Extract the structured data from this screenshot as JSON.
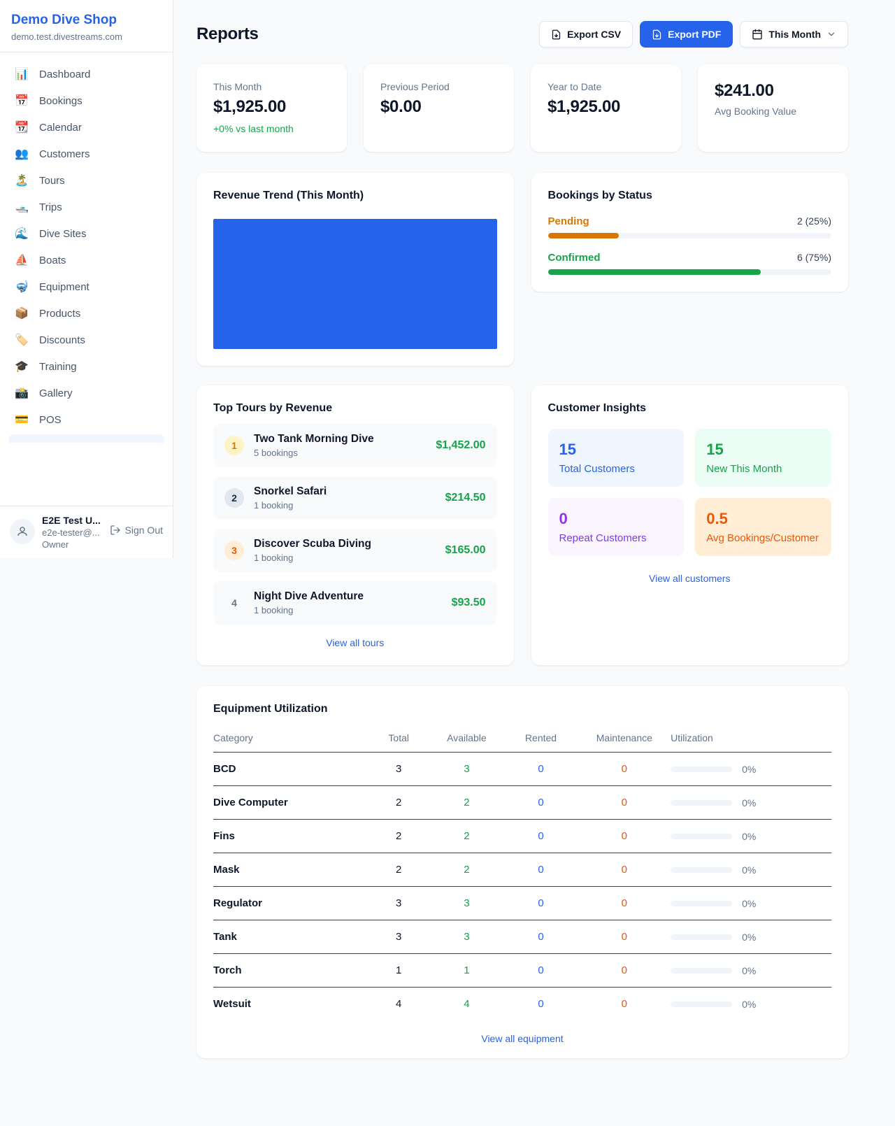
{
  "sidebar": {
    "title": "Demo Dive Shop",
    "subdomain": "demo.test.divestreams.com",
    "items": [
      {
        "icon": "📊",
        "label": "Dashboard"
      },
      {
        "icon": "📅",
        "label": "Bookings"
      },
      {
        "icon": "📆",
        "label": "Calendar"
      },
      {
        "icon": "👥",
        "label": "Customers"
      },
      {
        "icon": "🏝️",
        "label": "Tours"
      },
      {
        "icon": "🛥️",
        "label": "Trips"
      },
      {
        "icon": "🌊",
        "label": "Dive Sites"
      },
      {
        "icon": "⛵",
        "label": "Boats"
      },
      {
        "icon": "🤿",
        "label": "Equipment"
      },
      {
        "icon": "📦",
        "label": "Products"
      },
      {
        "icon": "🏷️",
        "label": "Discounts"
      },
      {
        "icon": "🎓",
        "label": "Training"
      },
      {
        "icon": "📸",
        "label": "Gallery"
      },
      {
        "icon": "💳",
        "label": "POS"
      }
    ],
    "user": {
      "name": "E2E Test U...",
      "email": "e2e-tester@...",
      "role": "Owner",
      "sign_out_label": "Sign Out"
    }
  },
  "header": {
    "title": "Reports",
    "export_csv_label": "Export CSV",
    "export_pdf_label": "Export PDF",
    "period_label": "This Month"
  },
  "stats": [
    {
      "label": "This Month",
      "value": "$1,925.00",
      "delta": "+0% vs last month"
    },
    {
      "label": "Previous Period",
      "value": "$0.00"
    },
    {
      "label": "Year to Date",
      "value": "$1,925.00"
    },
    {
      "label": "Avg Booking Value",
      "value": "$241.00"
    }
  ],
  "revenue_trend": {
    "title": "Revenue Trend (This Month)",
    "bar_color": "#2563eb"
  },
  "bookings_by_status": {
    "title": "Bookings by Status",
    "items": [
      {
        "label": "Pending",
        "value": "2 (25%)",
        "pct": 25,
        "color": "#d97706"
      },
      {
        "label": "Confirmed",
        "value": "6 (75%)",
        "pct": 75,
        "color": "#16a34a"
      }
    ]
  },
  "top_tours": {
    "title": "Top Tours by Revenue",
    "items": [
      {
        "rank": "1",
        "name": "Two Tank Morning Dive",
        "bookings": "5 bookings",
        "revenue": "$1,452.00"
      },
      {
        "rank": "2",
        "name": "Snorkel Safari",
        "bookings": "1 booking",
        "revenue": "$214.50"
      },
      {
        "rank": "3",
        "name": "Discover Scuba Diving",
        "bookings": "1 booking",
        "revenue": "$165.00"
      },
      {
        "rank": "4",
        "name": "Night Dive Adventure",
        "bookings": "1 booking",
        "revenue": "$93.50"
      }
    ],
    "view_all_label": "View all tours"
  },
  "customer_insights": {
    "title": "Customer Insights",
    "tiles": [
      {
        "value": "15",
        "label": "Total Customers",
        "color": "#2563eb",
        "bg": "#eff6ff"
      },
      {
        "value": "15",
        "label": "New This Month",
        "color": "#16a34a",
        "bg": "#ecfdf5"
      },
      {
        "value": "0",
        "label": "Repeat Customers",
        "color": "#9333ea",
        "bg": "#faf5ff"
      },
      {
        "value": "0.5",
        "label": "Avg Bookings/Customer",
        "color": "#ea580c",
        "bg": "#ffedd5"
      }
    ],
    "view_all_label": "View all customers"
  },
  "equipment": {
    "title": "Equipment Utilization",
    "columns": [
      "Category",
      "Total",
      "Available",
      "Rented",
      "Maintenance",
      "Utilization"
    ],
    "rows": [
      {
        "category": "BCD",
        "total": "3",
        "available": "3",
        "rented": "0",
        "maintenance": "0",
        "utilization": "0%",
        "pct": 0
      },
      {
        "category": "Dive Computer",
        "total": "2",
        "available": "2",
        "rented": "0",
        "maintenance": "0",
        "utilization": "0%",
        "pct": 0
      },
      {
        "category": "Fins",
        "total": "2",
        "available": "2",
        "rented": "0",
        "maintenance": "0",
        "utilization": "0%",
        "pct": 0
      },
      {
        "category": "Mask",
        "total": "2",
        "available": "2",
        "rented": "0",
        "maintenance": "0",
        "utilization": "0%",
        "pct": 0
      },
      {
        "category": "Regulator",
        "total": "3",
        "available": "3",
        "rented": "0",
        "maintenance": "0",
        "utilization": "0%",
        "pct": 0
      },
      {
        "category": "Tank",
        "total": "3",
        "available": "3",
        "rented": "0",
        "maintenance": "0",
        "utilization": "0%",
        "pct": 0
      },
      {
        "category": "Torch",
        "total": "1",
        "available": "1",
        "rented": "0",
        "maintenance": "0",
        "utilization": "0%",
        "pct": 0
      },
      {
        "category": "Wetsuit",
        "total": "4",
        "available": "4",
        "rented": "0",
        "maintenance": "0",
        "utilization": "0%",
        "pct": 0
      }
    ],
    "view_all_label": "View all equipment"
  },
  "colors": {
    "accent": "#2563eb",
    "green": "#16a34a",
    "amber": "#d97706",
    "orange": "#ea580c",
    "purple": "#9333ea"
  }
}
